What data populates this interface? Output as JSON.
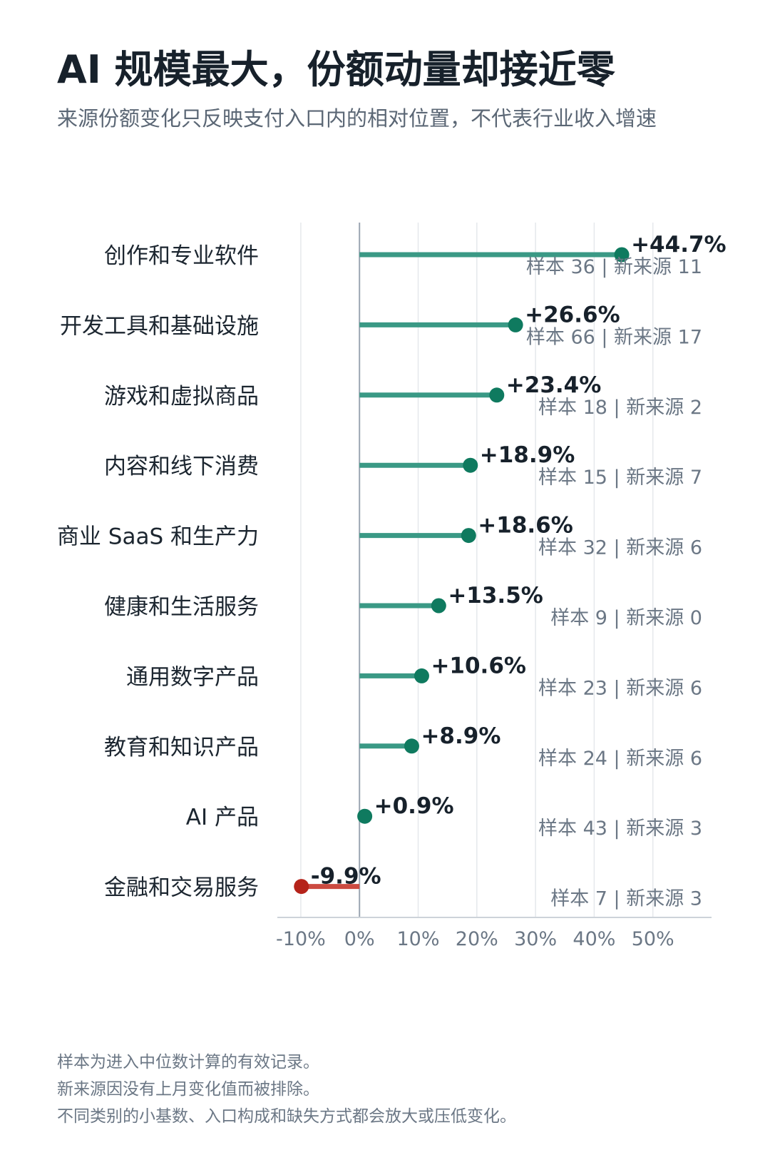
{
  "header": {
    "title": "AI 规模最大，份额动量却接近零",
    "subtitle": "来源份额变化只反映支付入口内的相对位置，不代表行业收入增速"
  },
  "chart_data": {
    "type": "lollipop",
    "orientation": "horizontal",
    "categories": [
      "创作和专业软件",
      "开发工具和基础设施",
      "游戏和虚拟商品",
      "内容和线下消费",
      "商业 SaaS 和生产力",
      "健康和生活服务",
      "通用数字产品",
      "教育和知识产品",
      "AI 产品",
      "金融和交易服务"
    ],
    "values": [
      44.7,
      26.6,
      23.4,
      18.9,
      18.6,
      13.5,
      10.6,
      8.9,
      0.9,
      -9.9
    ],
    "value_labels": [
      "+44.7%",
      "+26.6%",
      "+23.4%",
      "+18.9%",
      "+18.6%",
      "+13.5%",
      "+10.6%",
      "+8.9%",
      "+0.9%",
      "-9.9%"
    ],
    "sample_labels": [
      "样本 36 | 新来源 11",
      "样本 66 | 新来源 17",
      "样本 18 | 新来源 2",
      "样本 15 | 新来源 7",
      "样本 32 | 新来源 6",
      "样本 9 | 新来源 0",
      "样本 23 | 新来源 6",
      "样本 24 | 新来源 6",
      "样本 43 | 新来源 3",
      "样本 7 | 新来源 3"
    ],
    "x_ticks": [
      -10,
      0,
      10,
      20,
      30,
      40,
      50
    ],
    "x_tick_labels": [
      "-10%",
      "0%",
      "10%",
      "20%",
      "30%",
      "40%",
      "50%"
    ],
    "xlim": [
      -14,
      60
    ],
    "grid": true,
    "colors": {
      "positive_line": "#3a9985",
      "positive_dot": "#0f7a5f",
      "negative_line": "#cc4a40",
      "negative_dot": "#b5231a",
      "grid": "#e5e8ec",
      "zero_line": "#9aa5b1",
      "axis": "#cdd3d9",
      "category_text": "#1c2630",
      "value_text": "#17212b",
      "sample_text": "#6b7785",
      "tick_text": "#6b7785"
    }
  },
  "footnotes": [
    "样本为进入中位数计算的有效记录。",
    "新来源因没有上月变化值而被排除。",
    "不同类别的小基数、入口构成和缺失方式都会放大或压低变化。"
  ]
}
